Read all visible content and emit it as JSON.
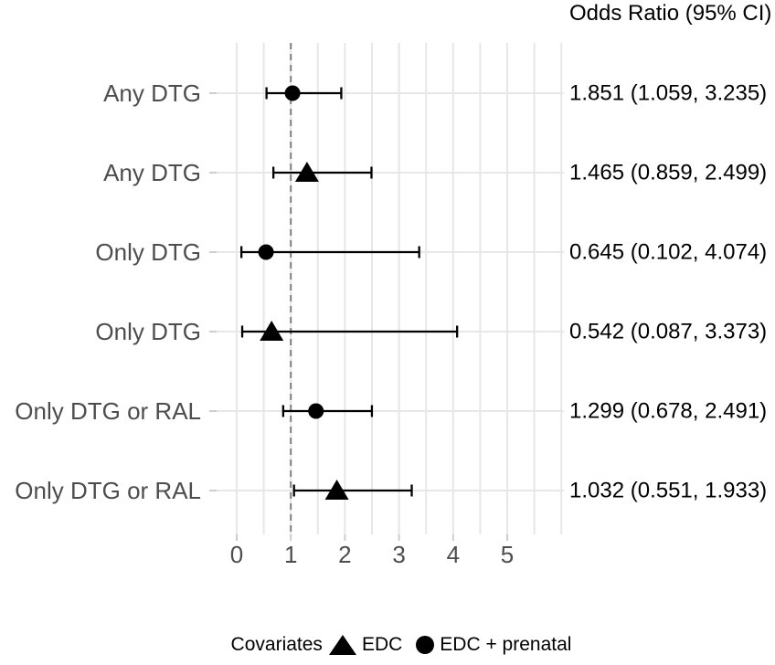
{
  "header": {
    "or_column_title": "Odds Ratio (95% CI)"
  },
  "legend": {
    "title": "Covariates",
    "items": [
      {
        "marker": "triangle",
        "label": "EDC"
      },
      {
        "marker": "circle",
        "label": "EDC + prenatal"
      }
    ]
  },
  "colors": {
    "background": "#ffffff",
    "marker": "#000000",
    "ci_line": "#000000",
    "grid": "#e7e7e7",
    "tick": "#cdcdcd",
    "reference_line": "#808080",
    "axis_text": "#4d4d4d",
    "value_text": "#000000"
  },
  "chart_data": {
    "type": "scatter",
    "subtype": "forest-plot-odds-ratio",
    "title": "",
    "xlabel": "",
    "ylabel": "",
    "x_axis": {
      "ticks": [
        0,
        1,
        2,
        3,
        4,
        5
      ],
      "tick_labels": [
        "0",
        "1",
        "2",
        "3",
        "4",
        "5"
      ],
      "minor_grid_step": 0.5,
      "grid_max": 6,
      "range_shown": [
        -0.37,
        6.05
      ],
      "reference_line_x": 1
    },
    "grid": "on",
    "legend_position": "bottom",
    "rows": [
      {
        "group_label": "Any DTG",
        "marker": "circle",
        "covariate": "EDC + prenatal",
        "or_text": "1.851 (1.059, 3.235)",
        "plotted": {
          "estimate": 1.032,
          "lower": 0.551,
          "upper": 1.933
        }
      },
      {
        "group_label": "Any DTG",
        "marker": "triangle",
        "covariate": "EDC",
        "or_text": "1.465 (0.859, 2.499)",
        "plotted": {
          "estimate": 1.299,
          "lower": 0.678,
          "upper": 2.491
        }
      },
      {
        "group_label": "Only DTG",
        "marker": "circle",
        "covariate": "EDC + prenatal",
        "or_text": "0.645 (0.102, 4.074)",
        "plotted": {
          "estimate": 0.542,
          "lower": 0.087,
          "upper": 3.373
        }
      },
      {
        "group_label": "Only DTG",
        "marker": "triangle",
        "covariate": "EDC",
        "or_text": "0.542 (0.087, 3.373)",
        "plotted": {
          "estimate": 0.645,
          "lower": 0.102,
          "upper": 4.074
        }
      },
      {
        "group_label": "Only DTG or RAL",
        "marker": "circle",
        "covariate": "EDC + prenatal",
        "or_text": "1.299 (0.678, 2.491)",
        "plotted": {
          "estimate": 1.465,
          "lower": 0.859,
          "upper": 2.499
        }
      },
      {
        "group_label": "Only DTG or RAL",
        "marker": "triangle",
        "covariate": "EDC",
        "or_text": "1.032 (0.551, 1.933)",
        "plotted": {
          "estimate": 1.851,
          "lower": 1.059,
          "upper": 3.235
        }
      }
    ],
    "note": "Marker/CI positions drawn as in source image; the odds-ratio text column is in reverse order relative to the plotted intervals."
  }
}
